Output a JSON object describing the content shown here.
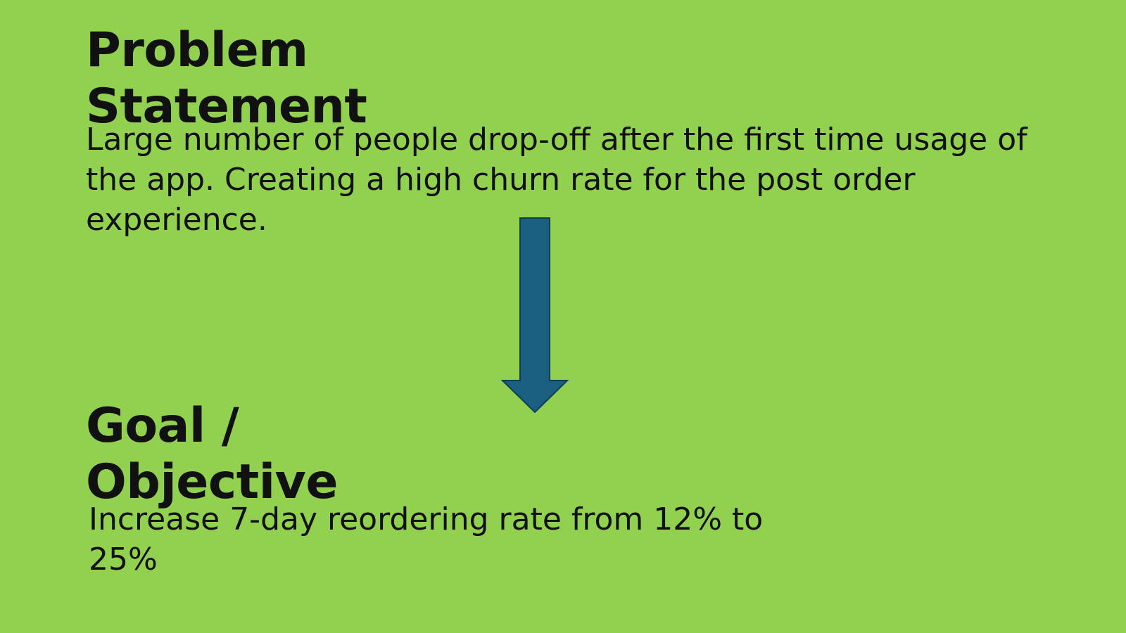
{
  "slide": {
    "background_color": "#92d050",
    "arrow_color": "#1a5e80"
  },
  "problem": {
    "title": "Problem\nStatement",
    "body": "Large number of people drop-off after the first time usage of\nthe app. Creating a high churn rate for the post order\nexperience."
  },
  "goal": {
    "title": "Goal /\nObjective",
    "body": "Increase 7-day reordering rate from 12% to\n25%"
  },
  "connector": {
    "icon": "down-arrow-icon"
  }
}
